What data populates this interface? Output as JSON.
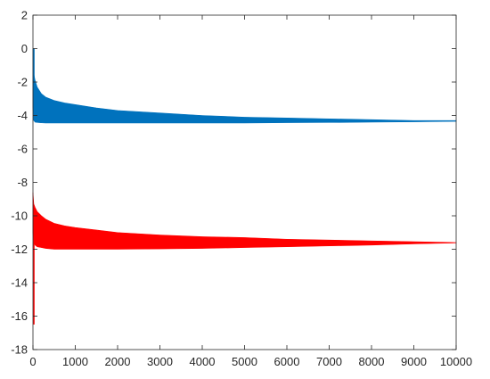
{
  "chart_data": {
    "type": "area",
    "title": "",
    "xlabel": "",
    "ylabel": "",
    "xlim": [
      0,
      10000
    ],
    "ylim": [
      -18,
      2
    ],
    "xticks": [
      0,
      1000,
      2000,
      3000,
      4000,
      5000,
      6000,
      7000,
      8000,
      9000,
      10000
    ],
    "yticks": [
      2,
      0,
      -2,
      -4,
      -6,
      -8,
      -10,
      -12,
      -14,
      -16,
      -18
    ],
    "xtick_labels": [
      "0",
      "1000",
      "2000",
      "3000",
      "4000",
      "5000",
      "6000",
      "7000",
      "8000",
      "9000",
      "10000"
    ],
    "ytick_labels": [
      "2",
      "0",
      "-2",
      "-4",
      "-6",
      "-8",
      "-10",
      "-12",
      "-14",
      "-16",
      "-18"
    ],
    "grid": false,
    "legend": "none",
    "series": [
      {
        "color": "#0072BD",
        "x": [
          0,
          20,
          50,
          100,
          200,
          300,
          500,
          750,
          1000,
          1500,
          2000,
          3000,
          4000,
          5000,
          6000,
          7000,
          8000,
          9000,
          10000
        ],
        "upper": [
          0.0,
          -1.5,
          -1.9,
          -2.3,
          -2.7,
          -2.9,
          -3.1,
          -3.25,
          -3.35,
          -3.55,
          -3.7,
          -3.85,
          -4.0,
          -4.1,
          -4.15,
          -4.2,
          -4.25,
          -4.3,
          -4.3
        ],
        "lower": [
          -3.5,
          -4.3,
          -4.4,
          -4.42,
          -4.44,
          -4.45,
          -4.45,
          -4.45,
          -4.45,
          -4.45,
          -4.45,
          -4.45,
          -4.45,
          -4.45,
          -4.43,
          -4.42,
          -4.4,
          -4.38,
          -4.35
        ]
      },
      {
        "color": "#FF0000",
        "x": [
          0,
          20,
          50,
          100,
          200,
          300,
          500,
          750,
          1000,
          1500,
          2000,
          3000,
          4000,
          5000,
          6000,
          7000,
          8000,
          9000,
          10000
        ],
        "upper": [
          -8.6,
          -9.3,
          -9.5,
          -9.75,
          -10.0,
          -10.2,
          -10.45,
          -10.6,
          -10.7,
          -10.85,
          -11.0,
          -11.15,
          -11.25,
          -11.3,
          -11.4,
          -11.45,
          -11.5,
          -11.55,
          -11.6
        ],
        "lower": [
          -11.0,
          -11.6,
          -11.75,
          -11.85,
          -11.9,
          -11.95,
          -12.0,
          -12.0,
          -12.0,
          -12.0,
          -12.0,
          -11.98,
          -11.95,
          -11.9,
          -11.85,
          -11.8,
          -11.75,
          -11.68,
          -11.62
        ]
      }
    ],
    "initial_spikes": [
      {
        "color": "#0072BD",
        "x": [
          0,
          0
        ],
        "y": [
          -4.3,
          0.0
        ]
      },
      {
        "color": "#FF0000",
        "x": [
          0,
          0
        ],
        "y": [
          -16.5,
          -11.0
        ]
      }
    ]
  }
}
